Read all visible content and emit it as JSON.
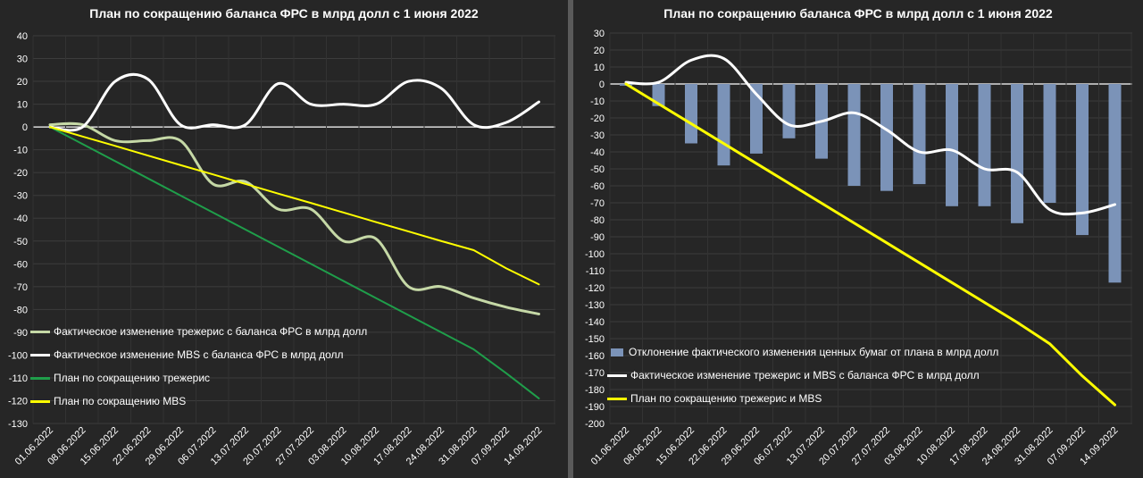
{
  "left_chart": {
    "title": "План по сокращению баланса ФРС в млрд долл с 1 июня 2022",
    "colors": {
      "treasury_actual": "#c5d8a6",
      "mbs_actual": "#ffffff",
      "treasury_plan": "#1f9e4a",
      "mbs_plan": "#ffff00"
    }
  },
  "right_chart": {
    "title": "План по сокращению баланса ФРС в млрд долл с 1 июня 2022",
    "colors": {
      "deviation_bars": "#7b93b8",
      "total_actual": "#ffffff",
      "total_plan": "#ffff00"
    }
  },
  "chart_data": [
    {
      "type": "line",
      "title": "План по сокращению баланса ФРС в млрд долл с 1 июня 2022",
      "categories": [
        "01.06.2022",
        "08.06.2022",
        "15.06.2022",
        "22.06.2022",
        "29.06.2022",
        "06.07.2022",
        "13.07.2022",
        "20.07.2022",
        "27.07.2022",
        "03.08.2022",
        "10.08.2022",
        "17.08.2022",
        "24.08.2022",
        "31.08.2022",
        "07.09.2022",
        "14.09.2022"
      ],
      "ylim": [
        -130,
        40
      ],
      "yticks": [
        40,
        30,
        20,
        10,
        0,
        -10,
        -20,
        -30,
        -40,
        -50,
        -60,
        -70,
        -80,
        -90,
        -100,
        -110,
        -120,
        -130
      ],
      "legend_position": "bottom-left",
      "series": [
        {
          "name": "Фактическое изменение трежерис с баланса ФРС в млрд долл",
          "color": "#c5d8a6",
          "width": 3,
          "smooth": true,
          "values": [
            1,
            1,
            -6,
            -6,
            -6,
            -25,
            -24,
            -36,
            -36,
            -50,
            -49,
            -70,
            -70,
            -75,
            -79,
            -82
          ]
        },
        {
          "name": "Фактическое изменение MBS с баланса ФРС в млрд долл",
          "color": "#ffffff",
          "width": 3,
          "smooth": true,
          "values": [
            0,
            0,
            20,
            21,
            1,
            1,
            1,
            19,
            10,
            10,
            10,
            20,
            17,
            1,
            2,
            11
          ]
        },
        {
          "name": "План по сокращению трежерис",
          "color": "#1f9e4a",
          "width": 2,
          "smooth": false,
          "values": [
            0,
            -7.5,
            -15,
            -22.5,
            -30,
            -37.5,
            -45,
            -52.5,
            -60,
            -67.5,
            -75,
            -82.5,
            -90,
            -97.5,
            -108,
            -119
          ]
        },
        {
          "name": "План по сокращению MBS",
          "color": "#ffff00",
          "width": 2,
          "smooth": false,
          "values": [
            0,
            -4.2,
            -8.3,
            -12.5,
            -16.7,
            -20.8,
            -25,
            -29.2,
            -33.3,
            -37.5,
            -41.7,
            -45.8,
            -50,
            -54,
            -62,
            -69
          ]
        }
      ]
    },
    {
      "type": "bar+line",
      "title": "План по сокращению баланса ФРС в млрд долл с 1 июня 2022",
      "categories": [
        "01.06.2022",
        "08.06.2022",
        "15.06.2022",
        "22.06.2022",
        "29.06.2022",
        "06.07.2022",
        "13.07.2022",
        "20.07.2022",
        "27.07.2022",
        "03.08.2022",
        "10.08.2022",
        "17.08.2022",
        "24.08.2022",
        "31.08.2022",
        "07.09.2022",
        "14.09.2022"
      ],
      "ylim": [
        -200,
        30
      ],
      "yticks": [
        30,
        20,
        10,
        0,
        -10,
        -20,
        -30,
        -40,
        -50,
        -60,
        -70,
        -80,
        -90,
        -100,
        -110,
        -120,
        -130,
        -140,
        -150,
        -160,
        -170,
        -180,
        -190,
        -200
      ],
      "legend_position": "bottom-left",
      "series": [
        {
          "name": "Отклонение фактического изменения ценных бумаг от плана в млрд долл",
          "kind": "bar",
          "color": "#7b93b8",
          "values": [
            -1,
            -13,
            -35,
            -48,
            -41,
            -32,
            -44,
            -60,
            -63,
            -59,
            -72,
            -72,
            -82,
            -70,
            -89,
            -117
          ]
        },
        {
          "name": "Фактическое изменение трежерис и MBS с баланса ФРС в млрд долл",
          "kind": "line",
          "color": "#ffffff",
          "width": 3,
          "smooth": true,
          "values": [
            1,
            1,
            14,
            15,
            -6,
            -24,
            -22,
            -17,
            -27,
            -40,
            -39,
            -50,
            -52,
            -74,
            -76,
            -71
          ]
        },
        {
          "name": "План по сокращению трежерис и MBS",
          "kind": "line",
          "color": "#ffff00",
          "width": 3,
          "smooth": false,
          "values": [
            0,
            -11.7,
            -23.4,
            -35.1,
            -46.8,
            -58.5,
            -70.2,
            -81.9,
            -93.6,
            -105.3,
            -117,
            -128.7,
            -140.4,
            -153,
            -172,
            -189
          ]
        }
      ]
    }
  ]
}
